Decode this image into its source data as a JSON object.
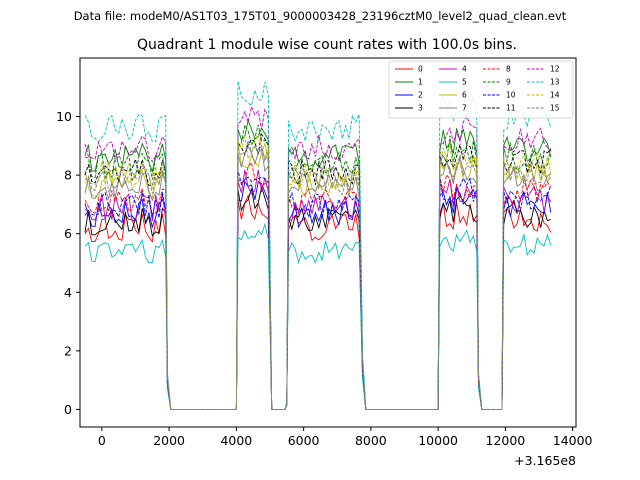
{
  "chart_data": {
    "type": "line",
    "suptitle": "Data file: modeM0/AS1T03_175T01_9000003428_23196cztM0_level2_quad_clean.evt",
    "title": "Quadrant 1 module wise count rates with 100.0s bins.",
    "xlabel": "",
    "ylabel": "",
    "x_offset_label": "+3.165e8",
    "xlim": [
      -650,
      14100
    ],
    "ylim": [
      -0.6,
      12.0
    ],
    "xticks": [
      0,
      2000,
      4000,
      6000,
      8000,
      10000,
      12000,
      14000
    ],
    "yticks": [
      0,
      2,
      4,
      6,
      8,
      10
    ],
    "grid": false,
    "legend_position": "top-right",
    "legend_columns": 4,
    "gti_segments": [
      {
        "start": -500,
        "end": 1900
      },
      {
        "start": 4050,
        "end": 5000
      },
      {
        "start": 5550,
        "end": 7700
      },
      {
        "start": 10050,
        "end": 11150
      },
      {
        "start": 11950,
        "end": 13400
      }
    ],
    "gap_points": [
      [
        1950,
        1.0
      ],
      [
        2050,
        0
      ],
      [
        2150,
        0
      ],
      [
        3950,
        0
      ],
      [
        4000,
        0
      ],
      [
        5050,
        0
      ],
      [
        5450,
        0
      ],
      [
        5500,
        0.2
      ],
      [
        7750,
        1.5
      ],
      [
        7850,
        0
      ],
      [
        9950,
        0
      ],
      [
        10000,
        0
      ],
      [
        11200,
        1.0
      ],
      [
        11300,
        0
      ],
      [
        11850,
        0
      ],
      [
        11900,
        0
      ]
    ],
    "series": [
      {
        "name": "0",
        "color": "#ff0000",
        "style": "solid",
        "base": 6.2,
        "amp": 0.3
      },
      {
        "name": "1",
        "color": "#008000",
        "style": "solid",
        "base": 8.6,
        "amp": 0.3
      },
      {
        "name": "2",
        "color": "#0000ff",
        "style": "solid",
        "base": 6.7,
        "amp": 0.3
      },
      {
        "name": "3",
        "color": "#000000",
        "style": "solid",
        "base": 6.4,
        "amp": 0.3
      },
      {
        "name": "4",
        "color": "#bf00bf",
        "style": "solid",
        "base": 6.9,
        "amp": 0.3
      },
      {
        "name": "5",
        "color": "#00bfbf",
        "style": "solid",
        "base": 5.4,
        "amp": 0.25
      },
      {
        "name": "6",
        "color": "#bfbf00",
        "style": "solid",
        "base": 7.7,
        "amp": 0.3
      },
      {
        "name": "7",
        "color": "#808080",
        "style": "solid",
        "base": 7.6,
        "amp": 0.3
      },
      {
        "name": "8",
        "color": "#ff0000",
        "style": "dashed",
        "base": 7.1,
        "amp": 0.3
      },
      {
        "name": "9",
        "color": "#008000",
        "style": "dashed",
        "base": 8.3,
        "amp": 0.3
      },
      {
        "name": "10",
        "color": "#0000ff",
        "style": "dashed",
        "base": 7.0,
        "amp": 0.3
      },
      {
        "name": "11",
        "color": "#000000",
        "style": "dashed",
        "base": 8.1,
        "amp": 0.3
      },
      {
        "name": "12",
        "color": "#bf00bf",
        "style": "dashed",
        "base": 8.9,
        "amp": 0.3
      },
      {
        "name": "13",
        "color": "#00bfbf",
        "style": "dashed",
        "base": 9.6,
        "amp": 0.3
      },
      {
        "name": "14",
        "color": "#bfbf00",
        "style": "dashed",
        "base": 8.0,
        "amp": 0.3
      },
      {
        "name": "15",
        "color": "#808080",
        "style": "dashed",
        "base": 7.8,
        "amp": 0.3
      }
    ]
  }
}
